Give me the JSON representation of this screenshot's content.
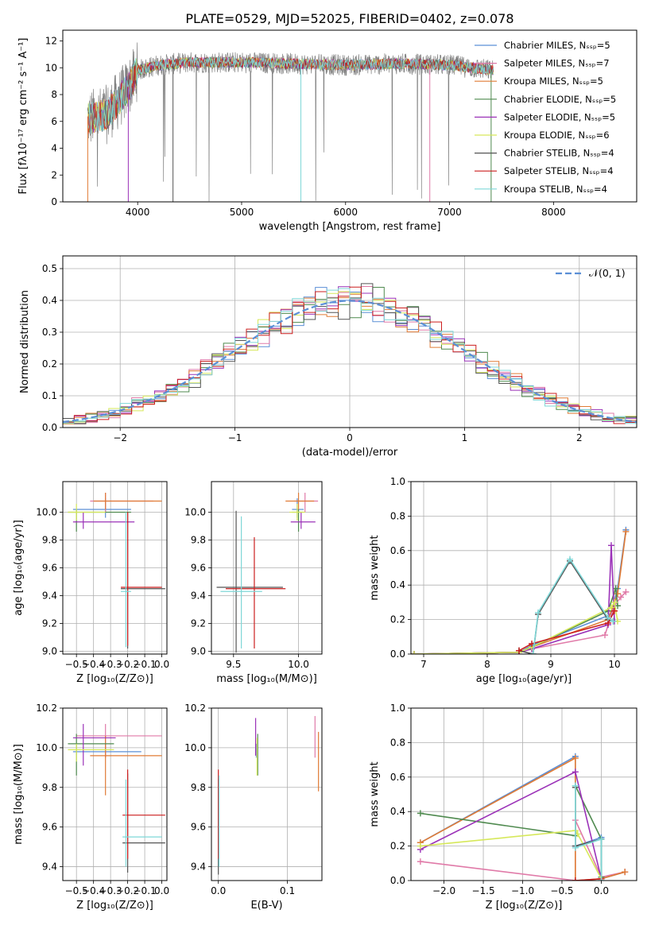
{
  "figure": {
    "title": "PLATE=0529, MJD=52025, FIBERID=0402, z=0.078"
  },
  "series_styles": [
    {
      "name": "Chabrier MILES",
      "nssp": "5",
      "color": "#5b8fd6"
    },
    {
      "name": "Salpeter MILES",
      "nssp": "7",
      "color": "#e07aa8"
    },
    {
      "name": "Kroupa MILES",
      "nssp": "5",
      "color": "#e07b35"
    },
    {
      "name": "Chabrier ELODIE",
      "nssp": "5",
      "color": "#4f8a4f"
    },
    {
      "name": "Salpeter ELODIE",
      "nssp": "5",
      "color": "#9b32b8"
    },
    {
      "name": "Kroupa ELODIE",
      "nssp": "6",
      "color": "#d6e85a"
    },
    {
      "name": "Chabrier STELIB",
      "nssp": "4",
      "color": "#555555"
    },
    {
      "name": "Salpeter STELIB",
      "nssp": "4",
      "color": "#cc1f1f"
    },
    {
      "name": "Kroupa STELIB",
      "nssp": "4",
      "color": "#7fd8d8"
    }
  ],
  "chart_data": [
    {
      "id": "spectrum",
      "type": "line",
      "title": "PLATE=0529, MJD=52025, FIBERID=0402, z=0.078",
      "xlabel": "wavelength [Angstrom, rest frame]",
      "ylabel": "Flux [fλ10⁻¹⁷ erg cm⁻² s⁻¹ A⁻¹]",
      "xlim": [
        3280,
        8800
      ],
      "ylim": [
        0,
        12.8
      ],
      "xticks": [
        4000,
        5000,
        6000,
        7000,
        8000
      ],
      "yticks": [
        0,
        2,
        4,
        6,
        8,
        10,
        12
      ],
      "legend": "upper right",
      "x_range_data": [
        3520,
        7420
      ],
      "observed_color": "#808080",
      "model_envelope": [
        {
          "x": 3520,
          "y": 6.2
        },
        {
          "x": 3700,
          "y": 6.5
        },
        {
          "x": 3900,
          "y": 8.4
        },
        {
          "x": 4000,
          "y": 9.8
        },
        {
          "x": 4200,
          "y": 10.2
        },
        {
          "x": 4500,
          "y": 10.4
        },
        {
          "x": 5000,
          "y": 10.4
        },
        {
          "x": 5500,
          "y": 10.3
        },
        {
          "x": 6000,
          "y": 10.2
        },
        {
          "x": 6500,
          "y": 10.3
        },
        {
          "x": 7000,
          "y": 10.2
        },
        {
          "x": 7420,
          "y": 9.8
        }
      ]
    },
    {
      "id": "residuals",
      "type": "line",
      "xlabel": "(data-model)/error",
      "ylabel": "Normed distribution",
      "xlim": [
        -2.5,
        2.5
      ],
      "ylim": [
        0,
        0.54
      ],
      "xticks": [
        -2,
        -1,
        0,
        1,
        2
      ],
      "yticks": [
        0.0,
        0.1,
        0.2,
        0.3,
        0.4,
        0.5
      ],
      "grid": true,
      "legend": "upper right",
      "reference_label": "𝒩(0, 1)",
      "reference_color": "#5b8fd6"
    },
    {
      "id": "age_vs_Z",
      "type": "scatter",
      "xlabel": "Z [log₁₀(Z/Z⊙)]",
      "ylabel": "age  [log₁₀(age/yr)]",
      "xlim": [
        -0.58,
        0.03
      ],
      "ylim": [
        8.98,
        10.22
      ],
      "xticks": [
        -0.5,
        -0.4,
        -0.3,
        -0.2,
        -0.1,
        0.0
      ],
      "yticks": [
        9.0,
        9.2,
        9.4,
        9.6,
        9.8,
        10.0
      ],
      "grid": true,
      "points": [
        {
          "series": 0,
          "x": -0.33,
          "x_lo": -0.52,
          "x_hi": -0.18,
          "y": 10.02,
          "y_lo": 9.96,
          "y_hi": 10.1
        },
        {
          "series": 1,
          "x": -0.33,
          "x_lo": -0.42,
          "x_hi": -0.05,
          "y": 10.08,
          "y_lo": 10.0,
          "y_hi": 10.14
        },
        {
          "series": 2,
          "x": -0.33,
          "x_lo": -0.4,
          "x_hi": 0.0,
          "y": 10.08,
          "y_lo": 10.02,
          "y_hi": 10.14
        },
        {
          "series": 3,
          "x": -0.5,
          "x_lo": -0.55,
          "x_hi": -0.18,
          "y": 10.0,
          "y_lo": 9.86,
          "y_hi": 10.02
        },
        {
          "series": 4,
          "x": -0.46,
          "x_lo": -0.52,
          "x_hi": -0.16,
          "y": 9.93,
          "y_lo": 9.88,
          "y_hi": 10.0
        },
        {
          "series": 5,
          "x": -0.5,
          "x_lo": -0.55,
          "x_hi": -0.33,
          "y": 10.0,
          "y_lo": 9.94,
          "y_hi": 10.06
        },
        {
          "series": 6,
          "x": -0.2,
          "x_lo": -0.24,
          "x_hi": 0.02,
          "y": 9.45,
          "y_lo": 9.02,
          "y_hi": 10.0
        },
        {
          "series": 7,
          "x": -0.2,
          "x_lo": -0.24,
          "x_hi": 0.0,
          "y": 9.46,
          "y_lo": 9.04,
          "y_hi": 10.0
        },
        {
          "series": 8,
          "x": -0.21,
          "x_lo": -0.24,
          "x_hi": -0.18,
          "y": 9.43,
          "y_lo": 9.03,
          "y_hi": 10.0
        }
      ]
    },
    {
      "id": "age_vs_mass",
      "type": "scatter",
      "xlabel": "mass [log₁₀(M/M⊙)]",
      "ylabel": "",
      "xlim": [
        9.33,
        10.18
      ],
      "ylim": [
        8.98,
        10.22
      ],
      "xticks": [
        9.5,
        10.0
      ],
      "yticks": [
        9.0,
        9.2,
        9.4,
        9.6,
        9.8,
        10.0
      ],
      "grid": true,
      "points": [
        {
          "series": 0,
          "x": 9.99,
          "x_lo": 9.95,
          "x_hi": 10.04,
          "y": 10.02,
          "y_lo": 9.96,
          "y_hi": 10.1
        },
        {
          "series": 1,
          "x": 10.05,
          "x_lo": 9.97,
          "x_hi": 10.15,
          "y": 10.08,
          "y_lo": 10.0,
          "y_hi": 10.14
        },
        {
          "series": 2,
          "x": 10.0,
          "x_lo": 9.9,
          "x_hi": 10.12,
          "y": 10.08,
          "y_lo": 10.02,
          "y_hi": 10.14
        },
        {
          "series": 3,
          "x": 10.0,
          "x_lo": 9.95,
          "x_hi": 10.04,
          "y": 10.0,
          "y_lo": 9.86,
          "y_hi": 10.02
        },
        {
          "series": 4,
          "x": 10.02,
          "x_lo": 9.94,
          "x_hi": 10.13,
          "y": 9.93,
          "y_lo": 9.88,
          "y_hi": 10.0
        },
        {
          "series": 5,
          "x": 9.99,
          "x_lo": 9.93,
          "x_hi": 10.05,
          "y": 10.0,
          "y_lo": 9.94,
          "y_hi": 10.06
        },
        {
          "series": 6,
          "x": 9.52,
          "x_lo": 9.37,
          "x_hi": 9.88,
          "y": 9.46,
          "y_lo": 8.99,
          "y_hi": 10.01
        },
        {
          "series": 7,
          "x": 9.66,
          "x_lo": 9.44,
          "x_hi": 9.9,
          "y": 9.45,
          "y_lo": 9.02,
          "y_hi": 9.82
        },
        {
          "series": 8,
          "x": 9.56,
          "x_lo": 9.4,
          "x_hi": 9.72,
          "y": 9.43,
          "y_lo": 9.02,
          "y_hi": 9.97
        }
      ]
    },
    {
      "id": "weight_vs_age",
      "type": "line",
      "xlabel": "age  [log₁₀(age/yr)]",
      "ylabel": "mass weight",
      "xlim": [
        6.8,
        10.35
      ],
      "ylim": [
        0,
        1.0
      ],
      "xticks": [
        7,
        8,
        9,
        10
      ],
      "yticks": [
        0.0,
        0.2,
        0.4,
        0.6,
        0.8,
        1.0
      ],
      "grid": true,
      "lines": [
        {
          "series": 0,
          "points": [
            [
              6.85,
              0.0
            ],
            [
              8.5,
              0.01
            ],
            [
              8.7,
              0.05
            ],
            [
              9.95,
              0.23
            ],
            [
              10.05,
              0.38
            ],
            [
              10.18,
              0.72
            ]
          ]
        },
        {
          "series": 1,
          "points": [
            [
              6.85,
              0.0
            ],
            [
              8.5,
              0.01
            ],
            [
              8.7,
              0.03
            ],
            [
              9.85,
              0.11
            ],
            [
              10.0,
              0.28
            ],
            [
              10.1,
              0.33
            ],
            [
              10.18,
              0.36
            ]
          ]
        },
        {
          "series": 2,
          "points": [
            [
              6.85,
              0.0
            ],
            [
              8.5,
              0.01
            ],
            [
              8.7,
              0.04
            ],
            [
              9.9,
              0.2
            ],
            [
              10.05,
              0.35
            ],
            [
              10.18,
              0.71
            ]
          ]
        },
        {
          "series": 3,
          "points": [
            [
              6.85,
              0.0
            ],
            [
              8.5,
              0.01
            ],
            [
              8.7,
              0.04
            ],
            [
              9.9,
              0.25
            ],
            [
              10.02,
              0.38
            ],
            [
              10.05,
              0.28
            ]
          ]
        },
        {
          "series": 4,
          "points": [
            [
              6.85,
              0.0
            ],
            [
              8.5,
              0.01
            ],
            [
              8.7,
              0.03
            ],
            [
              9.9,
              0.17
            ],
            [
              9.95,
              0.63
            ],
            [
              10.0,
              0.19
            ]
          ]
        },
        {
          "series": 5,
          "points": [
            [
              6.85,
              0.0
            ],
            [
              8.5,
              0.01
            ],
            [
              8.7,
              0.04
            ],
            [
              9.95,
              0.27
            ],
            [
              10.0,
              0.3
            ],
            [
              10.05,
              0.19
            ]
          ]
        },
        {
          "series": 6,
          "points": [
            [
              8.5,
              0.02
            ],
            [
              8.72,
              0.0
            ],
            [
              8.8,
              0.23
            ],
            [
              9.3,
              0.54
            ],
            [
              9.9,
              0.2
            ],
            [
              9.98,
              0.19
            ]
          ]
        },
        {
          "series": 7,
          "points": [
            [
              8.5,
              0.02
            ],
            [
              8.7,
              0.06
            ],
            [
              9.9,
              0.18
            ],
            [
              10.0,
              0.25
            ]
          ]
        },
        {
          "series": 8,
          "points": [
            [
              8.72,
              0.0
            ],
            [
              8.8,
              0.24
            ],
            [
              9.3,
              0.55
            ],
            [
              9.9,
              0.21
            ],
            [
              9.98,
              0.19
            ]
          ]
        }
      ]
    },
    {
      "id": "mass_vs_Z",
      "type": "scatter",
      "xlabel": "Z [log₁₀(Z/Z⊙)]",
      "ylabel": "mass [log₁₀(M/M⊙)]",
      "xlim": [
        -0.58,
        0.03
      ],
      "ylim": [
        9.33,
        10.2
      ],
      "xticks": [
        -0.5,
        -0.4,
        -0.3,
        -0.2,
        -0.1,
        0.0
      ],
      "yticks": [
        9.4,
        9.6,
        9.8,
        10.0,
        10.2
      ],
      "grid": true,
      "points": [
        {
          "series": 0,
          "x": -0.33,
          "x_lo": -0.52,
          "x_hi": -0.12,
          "y": 9.98,
          "y_lo": 9.95,
          "y_hi": 10.02
        },
        {
          "series": 1,
          "x": -0.33,
          "x_lo": -0.5,
          "x_hi": 0.0,
          "y": 10.06,
          "y_lo": 9.95,
          "y_hi": 10.12
        },
        {
          "series": 2,
          "x": -0.33,
          "x_lo": -0.42,
          "x_hi": 0.0,
          "y": 9.96,
          "y_lo": 9.76,
          "y_hi": 10.06
        },
        {
          "series": 3,
          "x": -0.5,
          "x_lo": -0.55,
          "x_hi": -0.28,
          "y": 10.02,
          "y_lo": 9.86,
          "y_hi": 10.07
        },
        {
          "series": 4,
          "x": -0.46,
          "x_lo": -0.52,
          "x_hi": -0.27,
          "y": 10.05,
          "y_lo": 9.91,
          "y_hi": 10.12
        },
        {
          "series": 5,
          "x": -0.5,
          "x_lo": -0.55,
          "x_hi": -0.28,
          "y": 9.99,
          "y_lo": 9.93,
          "y_hi": 10.02
        },
        {
          "series": 6,
          "x": -0.2,
          "x_lo": -0.23,
          "x_hi": 0.02,
          "y": 9.52,
          "y_lo": 9.37,
          "y_hi": 9.87
        },
        {
          "series": 7,
          "x": -0.2,
          "x_lo": -0.23,
          "x_hi": 0.02,
          "y": 9.66,
          "y_lo": 9.44,
          "y_hi": 9.89
        },
        {
          "series": 8,
          "x": -0.21,
          "x_lo": -0.23,
          "x_hi": 0.0,
          "y": 9.55,
          "y_lo": 9.4,
          "y_hi": 9.84
        }
      ]
    },
    {
      "id": "mass_vs_ebv",
      "type": "scatter",
      "xlabel": "E(B-V)",
      "ylabel": "",
      "xlim": [
        -0.01,
        0.15
      ],
      "ylim": [
        9.33,
        10.2
      ],
      "xticks": [
        0.0,
        0.1
      ],
      "yticks": [
        9.4,
        9.6,
        9.8,
        10.0,
        10.2
      ],
      "grid": true,
      "points": [
        {
          "series": 0,
          "x": 0.055,
          "y": 9.98,
          "y_lo": 9.95,
          "y_hi": 10.02
        },
        {
          "series": 1,
          "x": 0.14,
          "y": 10.06,
          "y_lo": 9.95,
          "y_hi": 10.16
        },
        {
          "series": 2,
          "x": 0.145,
          "y": 9.96,
          "y_lo": 9.78,
          "y_hi": 10.08
        },
        {
          "series": 3,
          "x": 0.057,
          "y": 10.02,
          "y_lo": 9.86,
          "y_hi": 10.07
        },
        {
          "series": 4,
          "x": 0.054,
          "y": 10.05,
          "y_lo": 9.96,
          "y_hi": 10.15
        },
        {
          "series": 5,
          "x": 0.056,
          "y": 9.99,
          "y_lo": 9.86,
          "y_hi": 10.05
        },
        {
          "series": 6,
          "x": 0.0,
          "y": 9.52,
          "y_lo": 9.36,
          "y_hi": 9.84
        },
        {
          "series": 7,
          "x": 0.0,
          "y": 9.66,
          "y_lo": 9.44,
          "y_hi": 9.89
        },
        {
          "series": 8,
          "x": 0.001,
          "y": 9.55,
          "y_lo": 9.4,
          "y_hi": 9.86
        }
      ]
    },
    {
      "id": "weight_vs_Z",
      "type": "line",
      "xlabel": "Z [log₁₀(Z/Z⊙)]",
      "ylabel": "mass weight",
      "xlim": [
        -2.42,
        0.45
      ],
      "ylim": [
        0,
        1.0
      ],
      "xticks": [
        -2.0,
        -1.5,
        -1.0,
        -0.5,
        0.0
      ],
      "yticks": [
        0.0,
        0.2,
        0.4,
        0.6,
        0.8,
        1.0
      ],
      "grid": true,
      "lines": [
        {
          "series": 0,
          "points": [
            [
              -2.3,
              0.22
            ],
            [
              -0.33,
              0.72
            ],
            [
              -0.33,
              0.2
            ],
            [
              0.0,
              0.25
            ],
            [
              0.0,
              0.01
            ],
            [
              0.3,
              0.05
            ]
          ]
        },
        {
          "series": 1,
          "points": [
            [
              -2.3,
              0.11
            ],
            [
              -0.33,
              0.0
            ],
            [
              -0.33,
              0.35
            ],
            [
              0.0,
              0.02
            ],
            [
              0.3,
              0.05
            ]
          ]
        },
        {
          "series": 2,
          "points": [
            [
              -2.3,
              0.22
            ],
            [
              -0.33,
              0.71
            ],
            [
              -0.33,
              0.0
            ],
            [
              0.0,
              0.01
            ],
            [
              0.3,
              0.05
            ]
          ]
        },
        {
          "series": 3,
          "points": [
            [
              -2.3,
              0.39
            ],
            [
              -0.33,
              0.26
            ],
            [
              -0.33,
              0.55
            ],
            [
              0.0,
              0.24
            ],
            [
              0.0,
              0.02
            ]
          ]
        },
        {
          "series": 4,
          "points": [
            [
              -2.3,
              0.18
            ],
            [
              -0.33,
              0.63
            ],
            [
              0.0,
              0.01
            ]
          ]
        },
        {
          "series": 5,
          "points": [
            [
              -2.3,
              0.2
            ],
            [
              -0.33,
              0.29
            ],
            [
              -0.3,
              0.27
            ],
            [
              0.0,
              0.01
            ]
          ]
        },
        {
          "series": 6,
          "points": [
            [
              -0.33,
              0.54
            ],
            [
              -0.33,
              0.2
            ],
            [
              0.0,
              0.24
            ]
          ]
        },
        {
          "series": 7,
          "points": [
            [
              -0.33,
              0.0
            ],
            [
              0.0,
              0.01
            ]
          ]
        },
        {
          "series": 8,
          "points": [
            [
              -0.33,
              0.55
            ],
            [
              -0.33,
              0.19
            ],
            [
              0.0,
              0.24
            ],
            [
              0.0,
              0.0
            ]
          ]
        }
      ]
    }
  ]
}
